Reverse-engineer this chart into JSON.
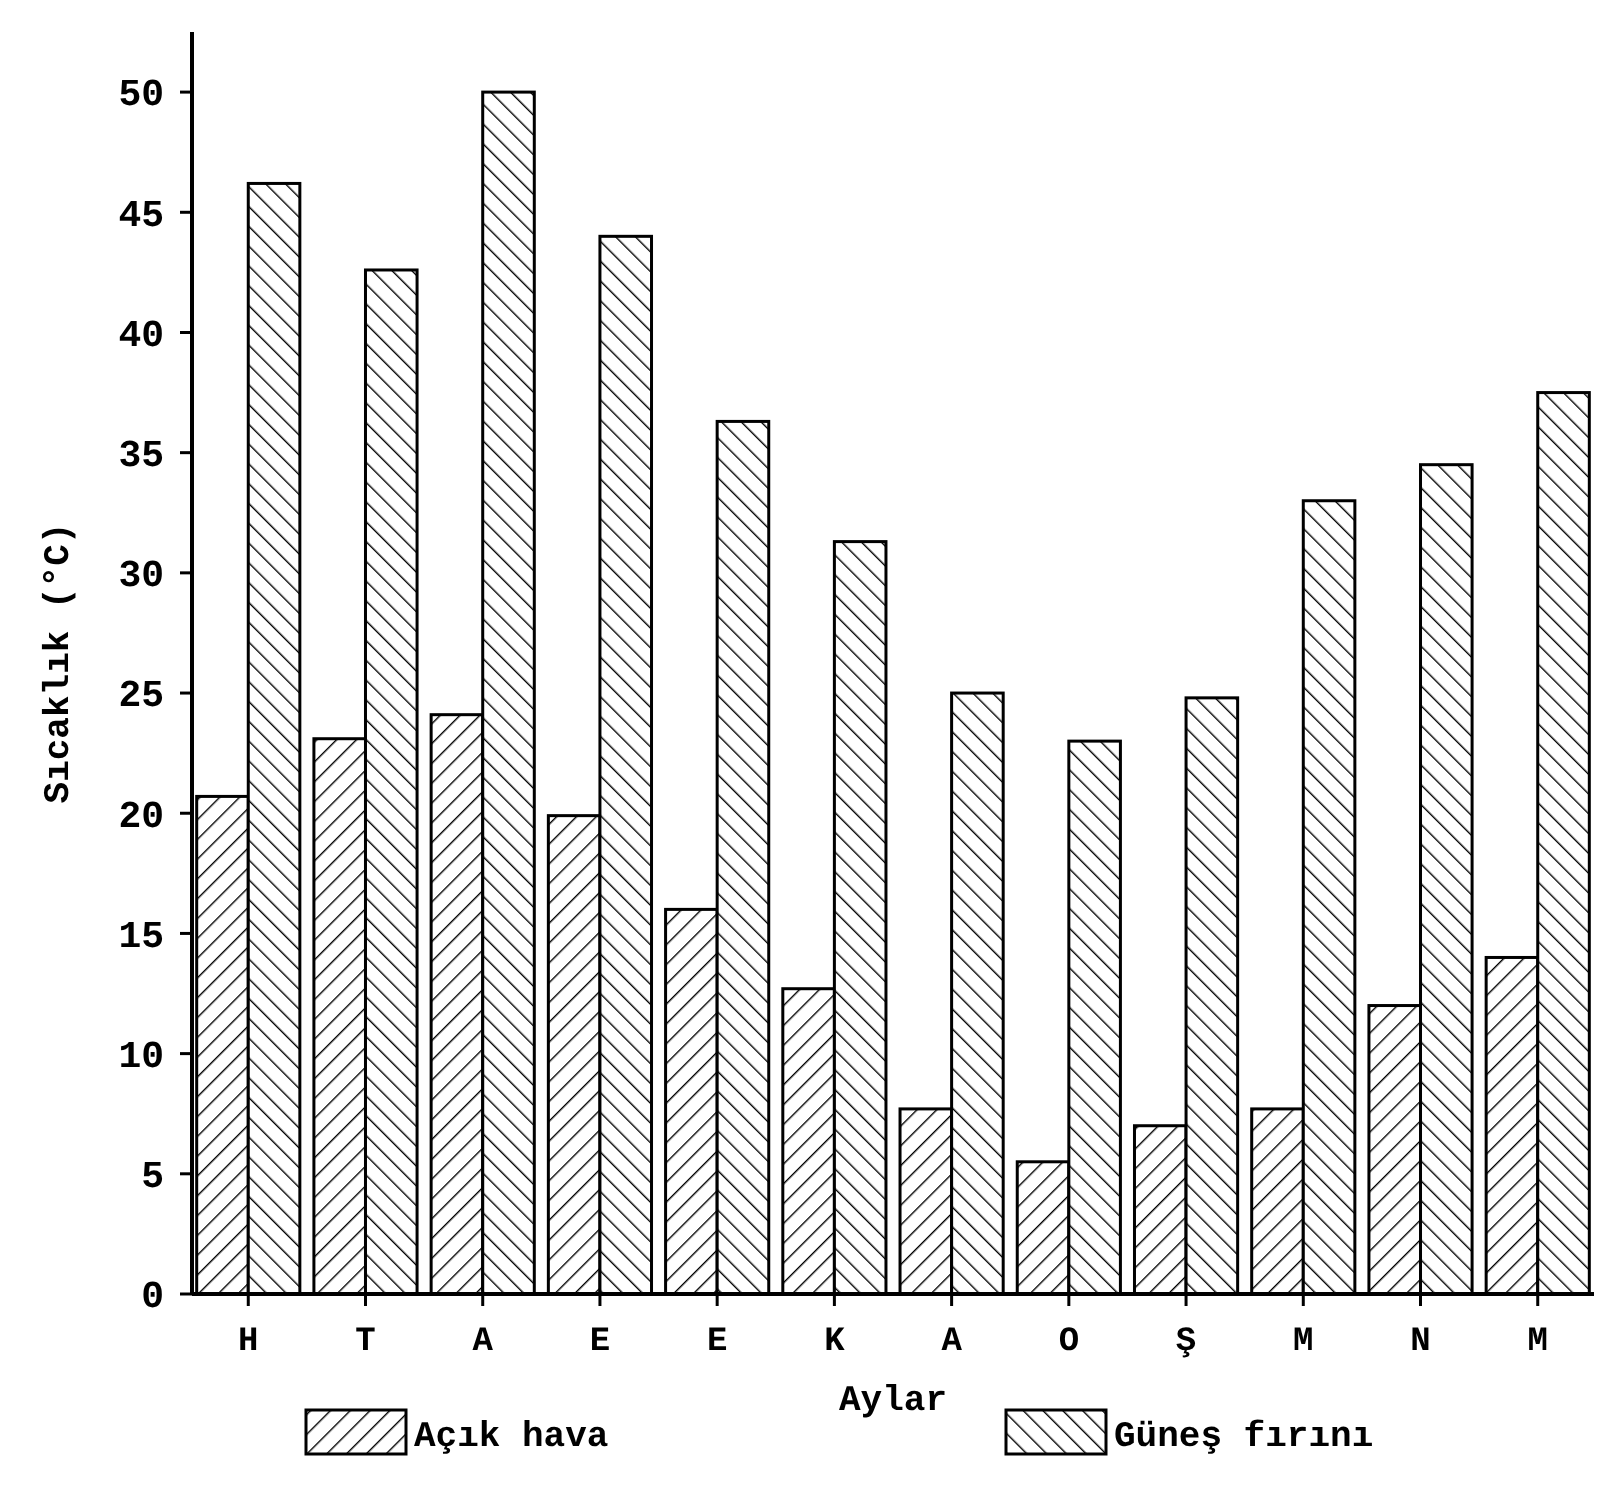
{
  "chart_data": {
    "type": "bar",
    "xlabel": "Aylar",
    "ylabel": "Sıcaklık (°C)",
    "categories": [
      "H",
      "T",
      "A",
      "E",
      "E",
      "K",
      "A",
      "O",
      "Ş",
      "M",
      "N",
      "M"
    ],
    "series": [
      {
        "name": "Açık hava",
        "color": "#000000",
        "values": [
          20.7,
          23.1,
          24.1,
          19.9,
          16.0,
          12.7,
          7.7,
          5.5,
          7.0,
          7.7,
          12.0,
          14.0
        ]
      },
      {
        "name": "Güneş fırını",
        "color": "#000000",
        "values": [
          46.2,
          42.6,
          50.0,
          44.0,
          36.3,
          31.3,
          25.0,
          23.0,
          24.8,
          33.0,
          34.5,
          37.5
        ]
      }
    ],
    "ylim": [
      0,
      52.5
    ],
    "yticks": [
      0,
      5,
      10,
      15,
      20,
      25,
      30,
      35,
      40,
      45,
      50
    ],
    "grid": false,
    "legend": "bottom"
  }
}
